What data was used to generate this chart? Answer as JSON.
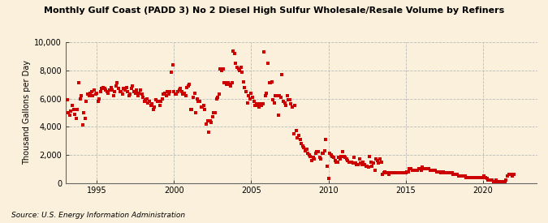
{
  "title": "Monthly Gulf Coast (PADD 3) No 2 Diesel High Sulfur Wholesale/Resale Volume by Refiners",
  "ylabel": "Thousand Gallons per Day",
  "source": "Source: U.S. Energy Information Administration",
  "dot_color": "#CC0000",
  "bg_color": "#FAF0DC",
  "ylim": [
    0,
    10000
  ],
  "yticks": [
    0,
    2000,
    4000,
    6000,
    8000,
    10000
  ],
  "ytick_labels": [
    "0",
    "2,000",
    "4,000",
    "6,000",
    "8,000",
    "10,000"
  ],
  "xticks": [
    1995,
    2000,
    2005,
    2010,
    2015,
    2020
  ],
  "xlim_start": 1993.0,
  "xlim_end": 2023.5,
  "data": [
    [
      1993.08,
      5900
    ],
    [
      1993.17,
      5000
    ],
    [
      1993.25,
      4800
    ],
    [
      1993.33,
      5100
    ],
    [
      1993.42,
      5500
    ],
    [
      1993.5,
      5200
    ],
    [
      1993.58,
      4900
    ],
    [
      1993.67,
      4600
    ],
    [
      1993.75,
      5200
    ],
    [
      1993.83,
      7100
    ],
    [
      1993.92,
      6000
    ],
    [
      1994.0,
      6200
    ],
    [
      1994.08,
      4100
    ],
    [
      1994.17,
      5000
    ],
    [
      1994.25,
      4600
    ],
    [
      1994.33,
      5800
    ],
    [
      1994.42,
      6300
    ],
    [
      1994.5,
      6200
    ],
    [
      1994.58,
      6400
    ],
    [
      1994.67,
      6500
    ],
    [
      1994.75,
      6200
    ],
    [
      1994.83,
      6600
    ],
    [
      1994.92,
      6300
    ],
    [
      1995.0,
      6400
    ],
    [
      1995.08,
      5800
    ],
    [
      1995.17,
      6000
    ],
    [
      1995.25,
      6500
    ],
    [
      1995.33,
      6700
    ],
    [
      1995.42,
      6800
    ],
    [
      1995.5,
      6700
    ],
    [
      1995.58,
      6600
    ],
    [
      1995.67,
      6500
    ],
    [
      1995.75,
      6400
    ],
    [
      1995.83,
      6600
    ],
    [
      1995.92,
      6800
    ],
    [
      1996.0,
      6600
    ],
    [
      1996.08,
      6200
    ],
    [
      1996.17,
      6500
    ],
    [
      1996.25,
      6900
    ],
    [
      1996.33,
      7100
    ],
    [
      1996.42,
      6700
    ],
    [
      1996.5,
      6500
    ],
    [
      1996.58,
      6500
    ],
    [
      1996.67,
      6300
    ],
    [
      1996.75,
      6700
    ],
    [
      1996.83,
      6600
    ],
    [
      1996.92,
      6800
    ],
    [
      1997.0,
      6500
    ],
    [
      1997.08,
      6200
    ],
    [
      1997.17,
      6300
    ],
    [
      1997.25,
      6700
    ],
    [
      1997.33,
      6900
    ],
    [
      1997.42,
      6500
    ],
    [
      1997.5,
      6400
    ],
    [
      1997.58,
      6600
    ],
    [
      1997.67,
      6200
    ],
    [
      1997.75,
      6400
    ],
    [
      1997.83,
      6600
    ],
    [
      1997.92,
      6300
    ],
    [
      1998.0,
      6100
    ],
    [
      1998.08,
      5800
    ],
    [
      1998.17,
      5900
    ],
    [
      1998.25,
      6000
    ],
    [
      1998.33,
      5700
    ],
    [
      1998.42,
      5800
    ],
    [
      1998.5,
      5500
    ],
    [
      1998.58,
      5600
    ],
    [
      1998.67,
      5200
    ],
    [
      1998.75,
      5400
    ],
    [
      1998.83,
      5900
    ],
    [
      1998.92,
      5800
    ],
    [
      1999.0,
      5800
    ],
    [
      1999.08,
      5500
    ],
    [
      1999.17,
      5800
    ],
    [
      1999.25,
      6000
    ],
    [
      1999.33,
      6300
    ],
    [
      1999.42,
      6400
    ],
    [
      1999.5,
      6200
    ],
    [
      1999.58,
      6500
    ],
    [
      1999.67,
      6300
    ],
    [
      1999.75,
      6500
    ],
    [
      1999.83,
      7900
    ],
    [
      1999.92,
      8400
    ],
    [
      2000.0,
      6500
    ],
    [
      2000.08,
      6300
    ],
    [
      2000.17,
      6300
    ],
    [
      2000.25,
      6500
    ],
    [
      2000.33,
      6600
    ],
    [
      2000.42,
      6700
    ],
    [
      2000.5,
      6500
    ],
    [
      2000.58,
      6300
    ],
    [
      2000.67,
      6400
    ],
    [
      2000.75,
      6200
    ],
    [
      2000.83,
      6800
    ],
    [
      2000.92,
      6900
    ],
    [
      2001.0,
      7000
    ],
    [
      2001.08,
      5200
    ],
    [
      2001.17,
      5200
    ],
    [
      2001.25,
      6100
    ],
    [
      2001.33,
      6400
    ],
    [
      2001.42,
      5000
    ],
    [
      2001.5,
      6000
    ],
    [
      2001.58,
      5800
    ],
    [
      2001.67,
      5800
    ],
    [
      2001.75,
      5400
    ],
    [
      2001.83,
      5400
    ],
    [
      2001.92,
      5500
    ],
    [
      2002.0,
      5200
    ],
    [
      2002.08,
      4200
    ],
    [
      2002.17,
      4400
    ],
    [
      2002.25,
      3600
    ],
    [
      2002.33,
      4400
    ],
    [
      2002.42,
      4300
    ],
    [
      2002.5,
      4700
    ],
    [
      2002.58,
      5000
    ],
    [
      2002.67,
      5000
    ],
    [
      2002.75,
      6000
    ],
    [
      2002.83,
      6100
    ],
    [
      2002.92,
      6300
    ],
    [
      2003.0,
      8100
    ],
    [
      2003.08,
      8000
    ],
    [
      2003.17,
      8100
    ],
    [
      2003.25,
      7100
    ],
    [
      2003.33,
      7100
    ],
    [
      2003.42,
      7000
    ],
    [
      2003.5,
      7100
    ],
    [
      2003.58,
      7000
    ],
    [
      2003.67,
      6900
    ],
    [
      2003.75,
      7100
    ],
    [
      2003.83,
      9400
    ],
    [
      2003.92,
      9200
    ],
    [
      2004.0,
      8500
    ],
    [
      2004.08,
      8200
    ],
    [
      2004.17,
      8100
    ],
    [
      2004.25,
      8000
    ],
    [
      2004.33,
      8200
    ],
    [
      2004.42,
      7900
    ],
    [
      2004.5,
      7200
    ],
    [
      2004.58,
      6800
    ],
    [
      2004.67,
      6500
    ],
    [
      2004.75,
      5700
    ],
    [
      2004.83,
      6200
    ],
    [
      2004.92,
      6000
    ],
    [
      2005.0,
      6400
    ],
    [
      2005.08,
      6100
    ],
    [
      2005.17,
      5800
    ],
    [
      2005.25,
      5500
    ],
    [
      2005.33,
      5600
    ],
    [
      2005.42,
      5500
    ],
    [
      2005.5,
      5400
    ],
    [
      2005.58,
      5600
    ],
    [
      2005.67,
      5500
    ],
    [
      2005.75,
      5600
    ],
    [
      2005.83,
      9300
    ],
    [
      2005.92,
      6200
    ],
    [
      2006.0,
      6400
    ],
    [
      2006.08,
      8500
    ],
    [
      2006.17,
      7100
    ],
    [
      2006.25,
      7100
    ],
    [
      2006.33,
      7200
    ],
    [
      2006.42,
      5900
    ],
    [
      2006.5,
      5700
    ],
    [
      2006.58,
      6200
    ],
    [
      2006.67,
      6200
    ],
    [
      2006.75,
      4800
    ],
    [
      2006.83,
      6200
    ],
    [
      2006.92,
      6100
    ],
    [
      2007.0,
      7700
    ],
    [
      2007.08,
      5800
    ],
    [
      2007.17,
      5700
    ],
    [
      2007.25,
      5500
    ],
    [
      2007.33,
      6200
    ],
    [
      2007.42,
      5900
    ],
    [
      2007.5,
      5900
    ],
    [
      2007.58,
      5600
    ],
    [
      2007.67,
      5400
    ],
    [
      2007.75,
      3500
    ],
    [
      2007.83,
      5500
    ],
    [
      2007.92,
      3700
    ],
    [
      2008.0,
      3200
    ],
    [
      2008.08,
      3400
    ],
    [
      2008.17,
      3100
    ],
    [
      2008.25,
      2800
    ],
    [
      2008.33,
      2600
    ],
    [
      2008.42,
      2500
    ],
    [
      2008.5,
      2300
    ],
    [
      2008.58,
      2400
    ],
    [
      2008.67,
      2100
    ],
    [
      2008.75,
      2000
    ],
    [
      2008.83,
      1900
    ],
    [
      2008.92,
      1600
    ],
    [
      2009.0,
      1800
    ],
    [
      2009.08,
      1700
    ],
    [
      2009.17,
      2100
    ],
    [
      2009.25,
      2200
    ],
    [
      2009.33,
      2200
    ],
    [
      2009.42,
      1800
    ],
    [
      2009.5,
      1700
    ],
    [
      2009.58,
      2100
    ],
    [
      2009.67,
      2100
    ],
    [
      2009.75,
      2300
    ],
    [
      2009.83,
      3100
    ],
    [
      2009.92,
      1200
    ],
    [
      2010.0,
      300
    ],
    [
      2010.08,
      2100
    ],
    [
      2010.17,
      2000
    ],
    [
      2010.25,
      1900
    ],
    [
      2010.33,
      1800
    ],
    [
      2010.42,
      1600
    ],
    [
      2010.5,
      1500
    ],
    [
      2010.58,
      1500
    ],
    [
      2010.67,
      1800
    ],
    [
      2010.75,
      1700
    ],
    [
      2010.83,
      1900
    ],
    [
      2010.92,
      2200
    ],
    [
      2011.0,
      1900
    ],
    [
      2011.08,
      1800
    ],
    [
      2011.17,
      1700
    ],
    [
      2011.25,
      1600
    ],
    [
      2011.33,
      1500
    ],
    [
      2011.42,
      1500
    ],
    [
      2011.5,
      1500
    ],
    [
      2011.58,
      1400
    ],
    [
      2011.67,
      1800
    ],
    [
      2011.75,
      1400
    ],
    [
      2011.83,
      1300
    ],
    [
      2011.92,
      1300
    ],
    [
      2012.0,
      1700
    ],
    [
      2012.08,
      1400
    ],
    [
      2012.17,
      1300
    ],
    [
      2012.25,
      1500
    ],
    [
      2012.33,
      1300
    ],
    [
      2012.42,
      1200
    ],
    [
      2012.5,
      1200
    ],
    [
      2012.58,
      1100
    ],
    [
      2012.67,
      1900
    ],
    [
      2012.75,
      1500
    ],
    [
      2012.83,
      1200
    ],
    [
      2012.92,
      1400
    ],
    [
      2013.0,
      900
    ],
    [
      2013.08,
      1700
    ],
    [
      2013.17,
      1600
    ],
    [
      2013.25,
      1400
    ],
    [
      2013.33,
      1700
    ],
    [
      2013.42,
      1500
    ],
    [
      2013.5,
      600
    ],
    [
      2013.58,
      700
    ],
    [
      2013.67,
      800
    ],
    [
      2013.75,
      700
    ],
    [
      2013.83,
      700
    ],
    [
      2013.92,
      600
    ],
    [
      2014.0,
      700
    ],
    [
      2014.08,
      700
    ],
    [
      2014.17,
      700
    ],
    [
      2014.25,
      700
    ],
    [
      2014.33,
      700
    ],
    [
      2014.42,
      700
    ],
    [
      2014.5,
      700
    ],
    [
      2014.58,
      700
    ],
    [
      2014.67,
      700
    ],
    [
      2014.75,
      700
    ],
    [
      2014.83,
      700
    ],
    [
      2014.92,
      700
    ],
    [
      2015.0,
      700
    ],
    [
      2015.08,
      800
    ],
    [
      2015.17,
      800
    ],
    [
      2015.25,
      1000
    ],
    [
      2015.33,
      1000
    ],
    [
      2015.42,
      900
    ],
    [
      2015.5,
      900
    ],
    [
      2015.58,
      900
    ],
    [
      2015.67,
      900
    ],
    [
      2015.75,
      900
    ],
    [
      2015.83,
      1000
    ],
    [
      2015.92,
      1000
    ],
    [
      2016.0,
      900
    ],
    [
      2016.08,
      1100
    ],
    [
      2016.17,
      1000
    ],
    [
      2016.25,
      1000
    ],
    [
      2016.33,
      1000
    ],
    [
      2016.42,
      1000
    ],
    [
      2016.5,
      1000
    ],
    [
      2016.58,
      900
    ],
    [
      2016.67,
      900
    ],
    [
      2016.75,
      900
    ],
    [
      2016.83,
      900
    ],
    [
      2016.92,
      900
    ],
    [
      2017.0,
      800
    ],
    [
      2017.08,
      800
    ],
    [
      2017.17,
      800
    ],
    [
      2017.25,
      700
    ],
    [
      2017.33,
      800
    ],
    [
      2017.42,
      800
    ],
    [
      2017.5,
      700
    ],
    [
      2017.58,
      700
    ],
    [
      2017.67,
      700
    ],
    [
      2017.75,
      700
    ],
    [
      2017.83,
      700
    ],
    [
      2017.92,
      700
    ],
    [
      2018.0,
      700
    ],
    [
      2018.08,
      600
    ],
    [
      2018.17,
      600
    ],
    [
      2018.25,
      600
    ],
    [
      2018.33,
      600
    ],
    [
      2018.42,
      500
    ],
    [
      2018.5,
      500
    ],
    [
      2018.58,
      500
    ],
    [
      2018.67,
      500
    ],
    [
      2018.75,
      500
    ],
    [
      2018.83,
      500
    ],
    [
      2018.92,
      400
    ],
    [
      2019.0,
      400
    ],
    [
      2019.08,
      400
    ],
    [
      2019.17,
      400
    ],
    [
      2019.25,
      400
    ],
    [
      2019.33,
      400
    ],
    [
      2019.42,
      400
    ],
    [
      2019.5,
      400
    ],
    [
      2019.58,
      400
    ],
    [
      2019.67,
      400
    ],
    [
      2019.75,
      400
    ],
    [
      2019.83,
      400
    ],
    [
      2019.92,
      400
    ],
    [
      2020.0,
      400
    ],
    [
      2020.08,
      500
    ],
    [
      2020.17,
      400
    ],
    [
      2020.25,
      300
    ],
    [
      2020.33,
      200
    ],
    [
      2020.42,
      200
    ],
    [
      2020.5,
      200
    ],
    [
      2020.58,
      200
    ],
    [
      2020.67,
      100
    ],
    [
      2020.75,
      100
    ],
    [
      2020.83,
      200
    ],
    [
      2020.92,
      100
    ],
    [
      2021.0,
      100
    ],
    [
      2021.08,
      100
    ],
    [
      2021.17,
      100
    ],
    [
      2021.25,
      100
    ],
    [
      2021.33,
      100
    ],
    [
      2021.42,
      100
    ],
    [
      2021.5,
      200
    ],
    [
      2021.58,
      500
    ],
    [
      2021.67,
      600
    ],
    [
      2021.75,
      600
    ],
    [
      2021.83,
      600
    ],
    [
      2021.92,
      500
    ],
    [
      2022.0,
      600
    ]
  ]
}
